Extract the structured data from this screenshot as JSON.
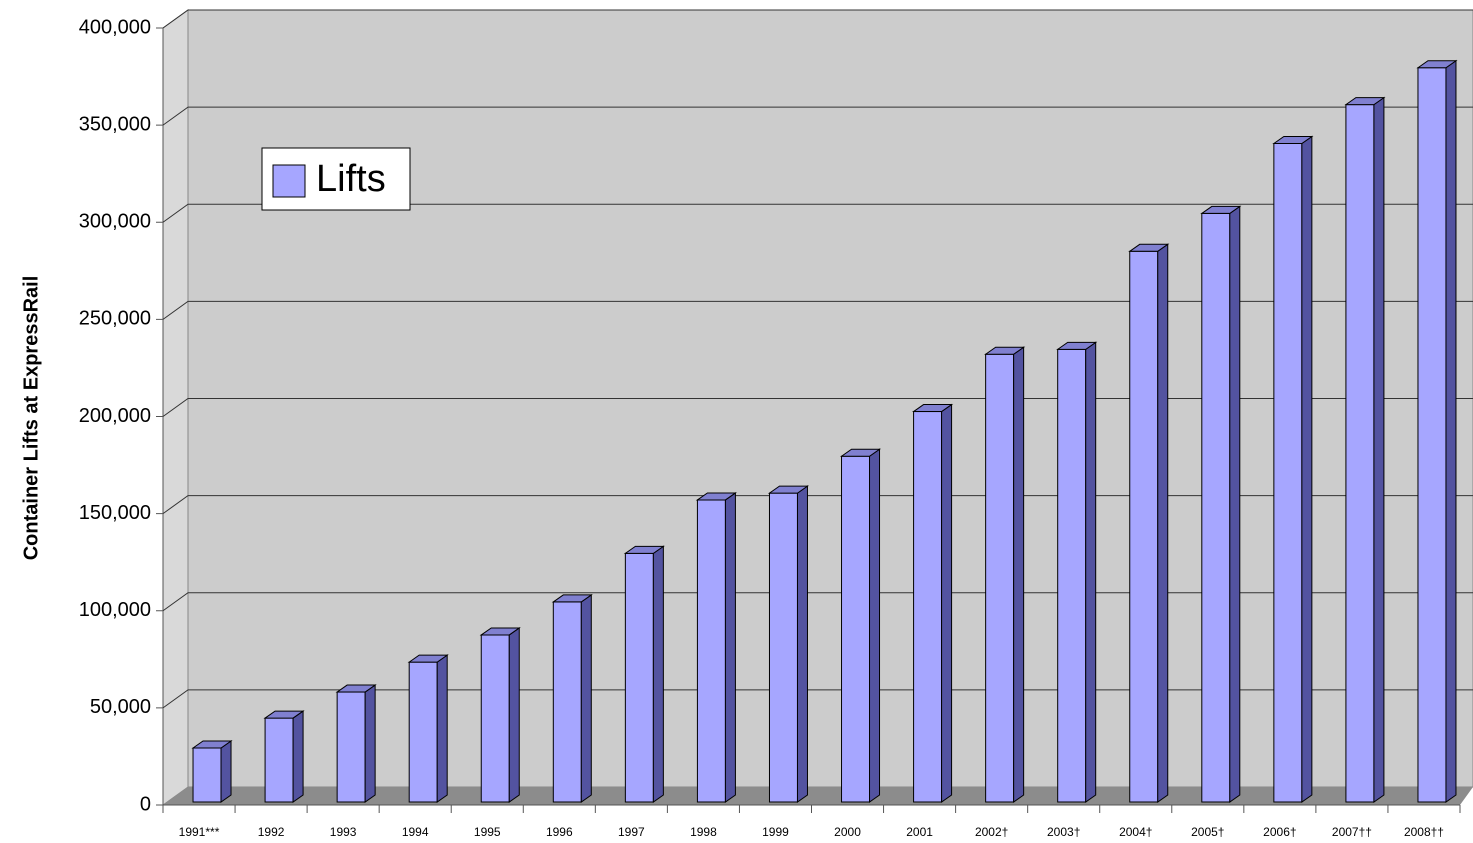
{
  "chart_data": {
    "type": "bar3d",
    "y_axis_label": "Container Lifts at ExpressRail",
    "categories": [
      "1991***",
      "1992",
      "1993",
      "1994",
      "1995",
      "1996",
      "1997",
      "1998",
      "1999",
      "2000",
      "2001",
      "2002†",
      "2003†",
      "2004†",
      "2005†",
      "2006†",
      "2007††",
      "2008††"
    ],
    "series": [
      {
        "name": "Lifts",
        "color": "#a6a6ff",
        "values": [
          27800,
          43200,
          56600,
          72000,
          86000,
          103000,
          128000,
          155500,
          159000,
          178000,
          201000,
          230500,
          233000,
          283500,
          303000,
          339000,
          359000,
          378000
        ]
      }
    ],
    "ylim": [
      0,
      400000
    ],
    "yticks": [
      0,
      {
        "value": 50000,
        "label": "50,000"
      },
      {
        "value": 100000,
        "label": "100,000"
      },
      {
        "value": 150000,
        "label": "150,000"
      },
      {
        "value": 200000,
        "label": "200,000"
      },
      {
        "value": 250000,
        "label": "250,000"
      },
      {
        "value": 300000,
        "label": "300,000"
      },
      {
        "value": 350000,
        "label": "350,000"
      },
      {
        "value": 400000,
        "label": "400,000"
      }
    ],
    "grid": true,
    "legend": "upper left"
  }
}
